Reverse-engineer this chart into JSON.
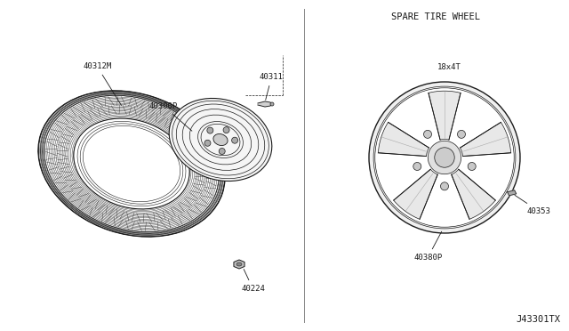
{
  "bg_color": "#ffffff",
  "line_color": "#1a1a1a",
  "title_spare": "SPARE TIRE WHEEL",
  "label_18x4t": "18x4T",
  "label_40312M": "40312M",
  "label_40300P": "40300P",
  "label_40311": "40311",
  "label_40224": "40224",
  "label_40380P": "40380P",
  "label_40353": "40353",
  "footer": "J43301TX",
  "font_family": "monospace",
  "font_size_labels": 6.5,
  "font_size_title": 7.5,
  "font_size_footer": 7.5
}
